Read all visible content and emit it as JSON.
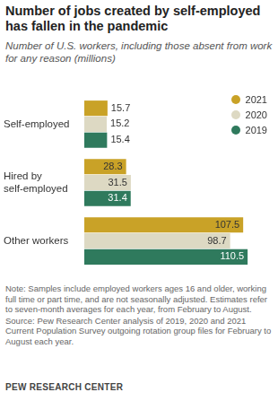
{
  "chart_data": {
    "type": "bar",
    "title": "Number of jobs created by self-employed has fallen in the pandemic",
    "subtitle": "Number of U.S. workers, including those absent from work for any reason (millions)",
    "categories": [
      "Self-employed",
      "Hired by self-employed",
      "Other workers"
    ],
    "series": [
      {
        "name": "2021",
        "color": "#c9a227",
        "values": [
          15.7,
          28.3,
          107.5
        ]
      },
      {
        "name": "2020",
        "color": "#ddd9c3",
        "values": [
          15.2,
          31.5,
          98.7
        ]
      },
      {
        "name": "2019",
        "color": "#2f7a5d",
        "values": [
          15.4,
          31.4,
          110.5
        ]
      }
    ],
    "xlim": [
      0,
      125
    ],
    "orientation": "horizontal",
    "data_labels": true,
    "tick_labels": "y",
    "grid": false,
    "legend": "upper right",
    "note": "Note: Samples include employed workers ages 16 and older, working full time or part time, and are not seasonally adjusted. Estimates refer to seven-month averages for each year, from February to August.",
    "source": "Source: Pew Research Center analysis of 2019, 2020 and 2021 Current Population Survey outgoing rotation group files for February to August each year.",
    "credit": "PEW RESEARCH CENTER"
  }
}
